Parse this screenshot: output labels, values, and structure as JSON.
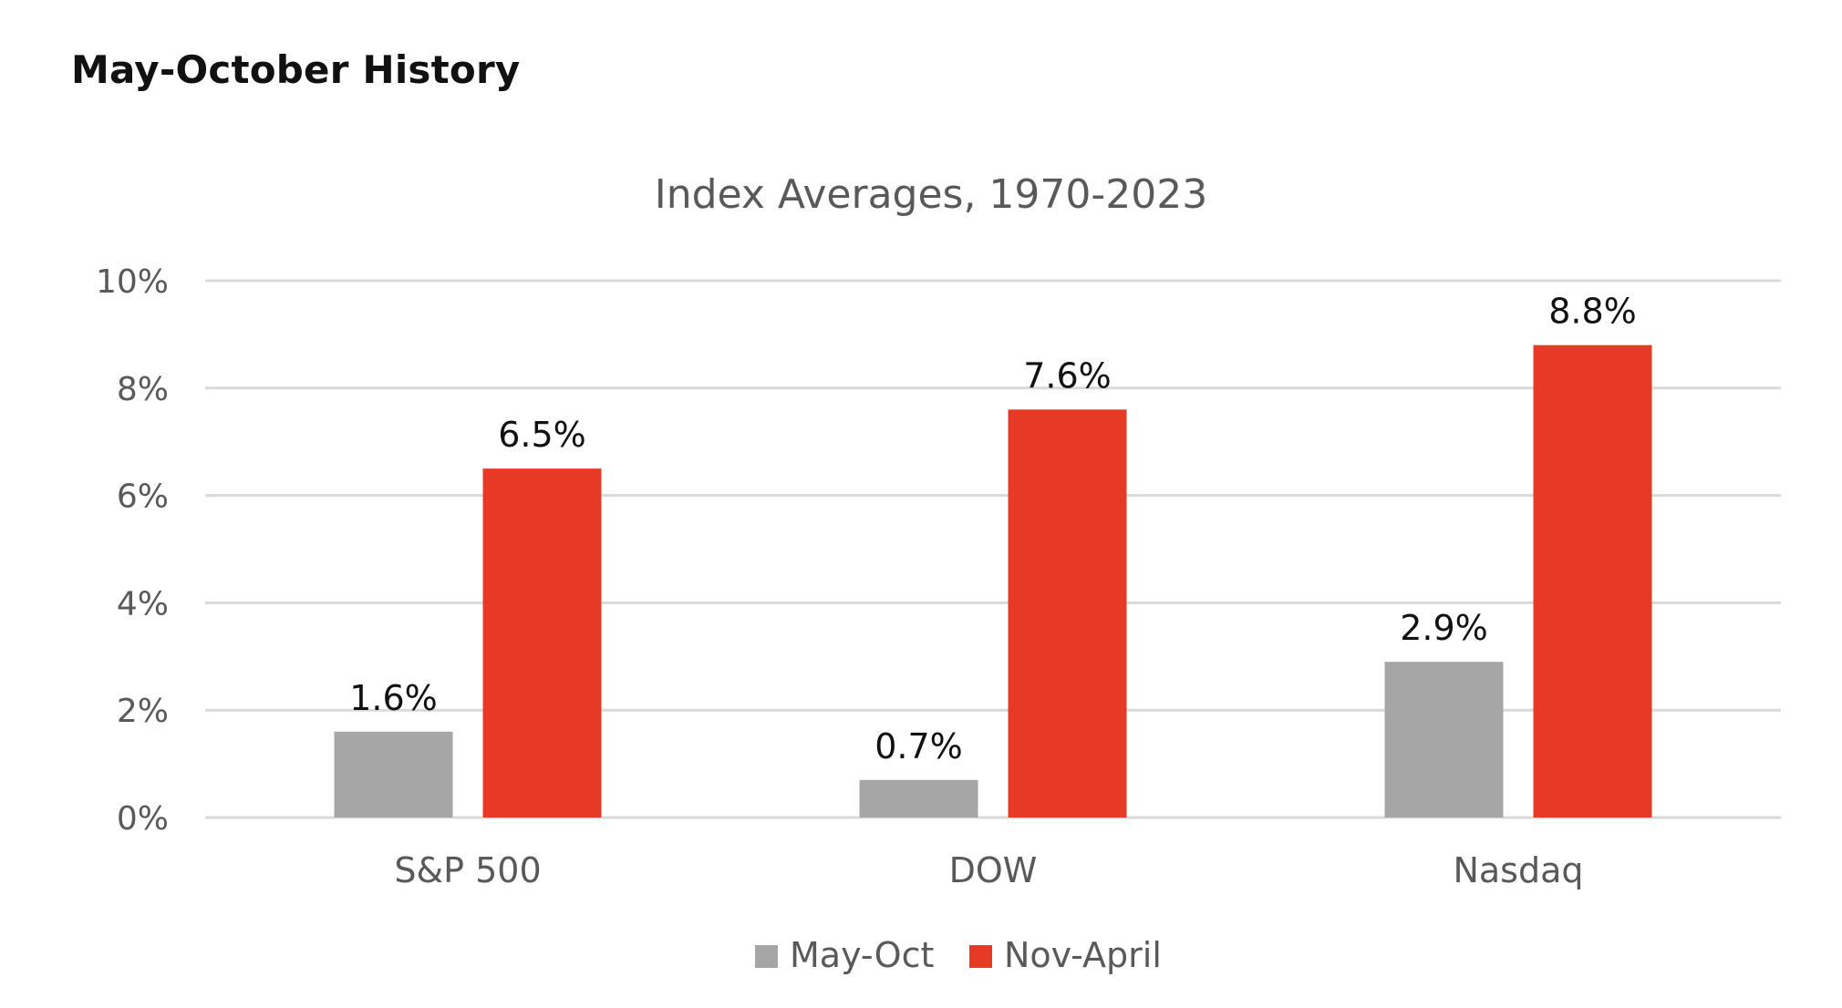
{
  "header": {
    "title": "May-October History"
  },
  "chart_data": {
    "type": "bar",
    "title": "Index Averages, 1970-2023",
    "xlabel": "",
    "ylabel": "",
    "categories": [
      "S&P 500",
      "DOW",
      "Nasdaq"
    ],
    "series": [
      {
        "name": "May-Oct",
        "color": "#a6a6a6",
        "values": [
          1.6,
          0.7,
          2.9
        ],
        "labels": [
          "1.6%",
          "0.7%",
          "2.9%"
        ]
      },
      {
        "name": "Nov-April",
        "color": "#e63a27",
        "values": [
          6.5,
          7.6,
          8.8
        ],
        "labels": [
          "6.5%",
          "7.6%",
          "8.8%"
        ]
      }
    ],
    "ylim": [
      0,
      10
    ],
    "yticks": [
      0,
      2,
      4,
      6,
      8,
      10
    ],
    "ytick_labels": [
      "0%",
      "2%",
      "4%",
      "6%",
      "8%",
      "10%"
    ],
    "grid": true,
    "gridline_color": "#d9d9d9",
    "legend_position": "bottom-center"
  }
}
